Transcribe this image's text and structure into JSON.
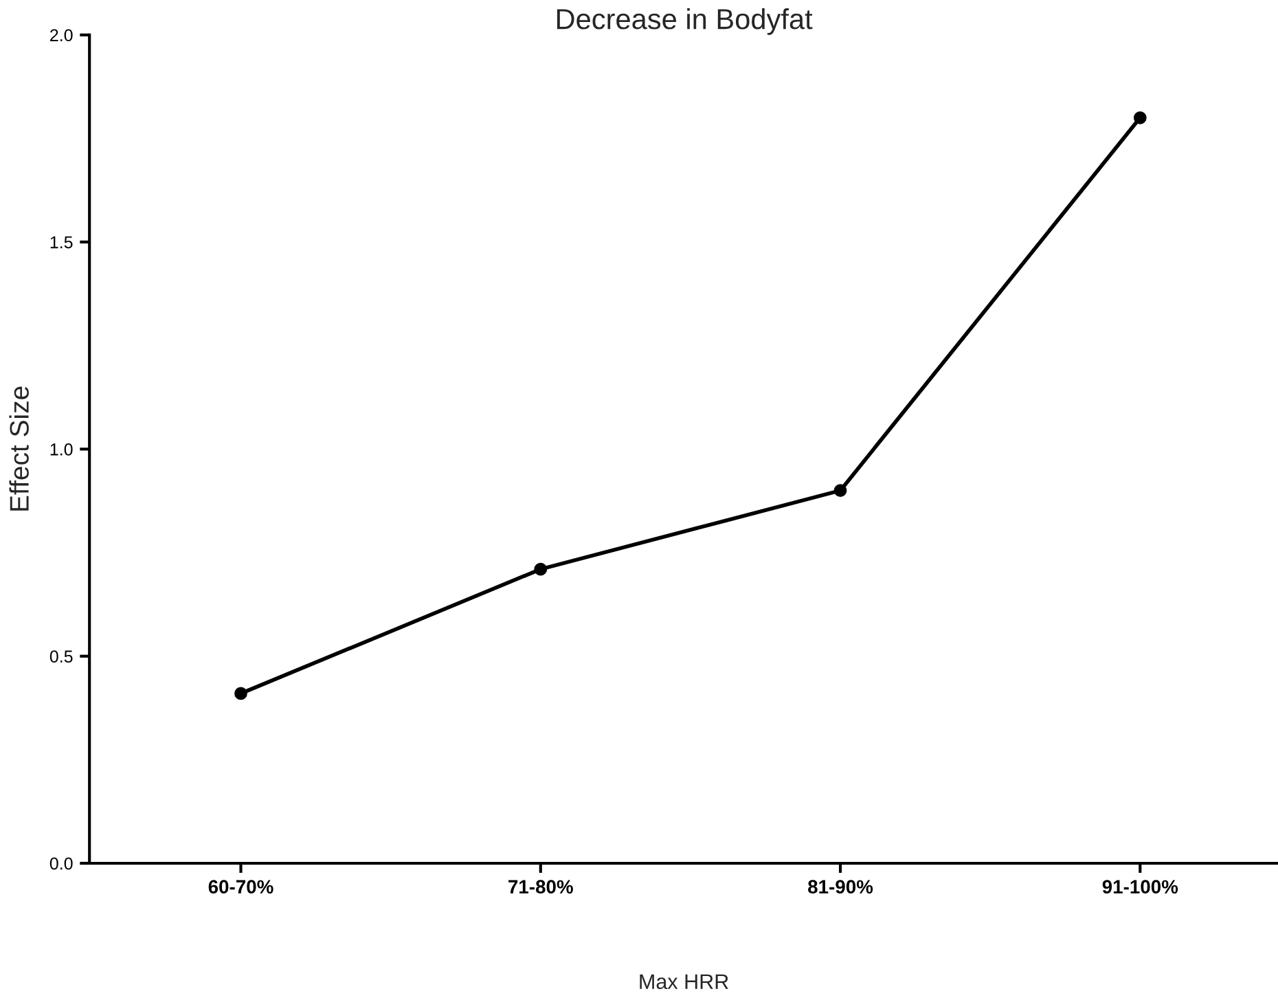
{
  "chart_data": {
    "type": "line",
    "title": "Decrease in Bodyfat",
    "xlabel": "Max HRR",
    "ylabel": "Effect Size",
    "categories": [
      "60-70%",
      "71-80%",
      "81-90%",
      "91-100%"
    ],
    "series": [
      {
        "color": "#000000",
        "values": [
          0.41,
          0.71,
          0.9,
          1.8
        ]
      }
    ],
    "ylim": [
      0,
      2
    ],
    "yticks": [
      {
        "value": 0,
        "label": "0.0"
      },
      {
        "value": 0.5,
        "label": "0.5"
      },
      {
        "value": 1,
        "label": "1.0"
      },
      {
        "value": 1.5,
        "label": "1.5"
      },
      {
        "value": 2,
        "label": "2.0"
      }
    ],
    "marker": "circle",
    "line_style": "solid",
    "grid": false,
    "legend": false
  }
}
